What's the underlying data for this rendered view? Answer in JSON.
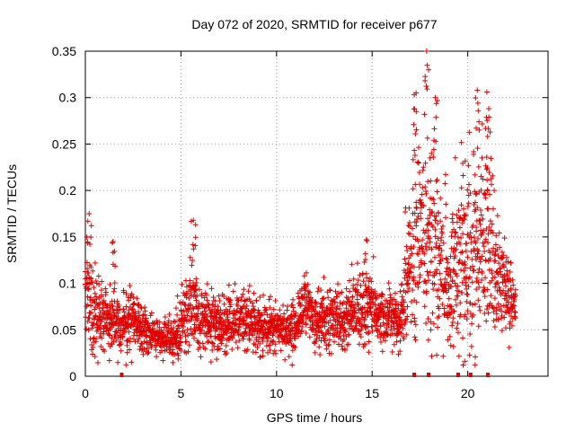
{
  "chart_data": {
    "type": "scatter",
    "title": "Day 072 of 2020, SRMTID for receiver p677",
    "xlabel": "GPS time / hours",
    "ylabel": "SRMTID / TECUs",
    "xlim": [
      0,
      24.2
    ],
    "ylim": [
      0,
      0.35
    ],
    "grid": true,
    "x_ticks": [
      0,
      5,
      10,
      15,
      20
    ],
    "x_tick_labels": [
      "0",
      "5",
      "10",
      "15",
      "20"
    ],
    "y_ticks": [
      0,
      0.05,
      0.1,
      0.15,
      0.2,
      0.25,
      0.3,
      0.35
    ],
    "y_tick_labels": [
      "0",
      "0.05",
      "0.1",
      "0.15",
      "0.2",
      "0.25",
      "0.3",
      "0.35"
    ],
    "series": [
      {
        "name": "SRMTID",
        "marker": "plus",
        "color": "#e00000",
        "envelope_hours": [
          0,
          0.5,
          1,
          1.5,
          2,
          2.5,
          3,
          3.5,
          4,
          4.5,
          5,
          5.5,
          6,
          6.5,
          7,
          7.5,
          8,
          8.5,
          9,
          9.5,
          10,
          10.5,
          11,
          11.5,
          12,
          12.5,
          13,
          13.5,
          14,
          14.5,
          15,
          15.5,
          16,
          16.5,
          17,
          17.5,
          18,
          18.5,
          19,
          19.5,
          20,
          20.5,
          21,
          21.5,
          22,
          22.5
        ],
        "envelope_center": [
          0.09,
          0.07,
          0.065,
          0.06,
          0.055,
          0.065,
          0.05,
          0.045,
          0.04,
          0.04,
          0.05,
          0.08,
          0.065,
          0.06,
          0.055,
          0.055,
          0.06,
          0.065,
          0.055,
          0.05,
          0.05,
          0.05,
          0.05,
          0.08,
          0.06,
          0.06,
          0.065,
          0.06,
          0.07,
          0.075,
          0.07,
          0.065,
          0.065,
          0.06,
          0.12,
          0.16,
          0.15,
          0.14,
          0.1,
          0.12,
          0.12,
          0.15,
          0.15,
          0.12,
          0.09,
          0.07
        ],
        "envelope_spread": [
          0.03,
          0.025,
          0.02,
          0.02,
          0.02,
          0.025,
          0.015,
          0.015,
          0.012,
          0.012,
          0.02,
          0.03,
          0.02,
          0.02,
          0.02,
          0.02,
          0.02,
          0.02,
          0.02,
          0.015,
          0.015,
          0.015,
          0.015,
          0.02,
          0.02,
          0.02,
          0.02,
          0.02,
          0.02,
          0.03,
          0.025,
          0.02,
          0.02,
          0.02,
          0.06,
          0.07,
          0.07,
          0.06,
          0.04,
          0.06,
          0.06,
          0.07,
          0.07,
          0.04,
          0.025,
          0.02
        ],
        "peaks": [
          {
            "x": 0.2,
            "y": 0.175
          },
          {
            "x": 1.45,
            "y": 0.145
          },
          {
            "x": 5.65,
            "y": 0.168
          },
          {
            "x": 14.7,
            "y": 0.147
          },
          {
            "x": 17.3,
            "y": 0.305
          },
          {
            "x": 17.85,
            "y": 0.35
          },
          {
            "x": 18.3,
            "y": 0.3
          },
          {
            "x": 20.5,
            "y": 0.308
          },
          {
            "x": 21.0,
            "y": 0.306
          }
        ]
      }
    ],
    "gap_markers_hours": [
      1.9,
      17.2,
      17.95,
      19.5,
      20.15,
      21.05
    ]
  }
}
